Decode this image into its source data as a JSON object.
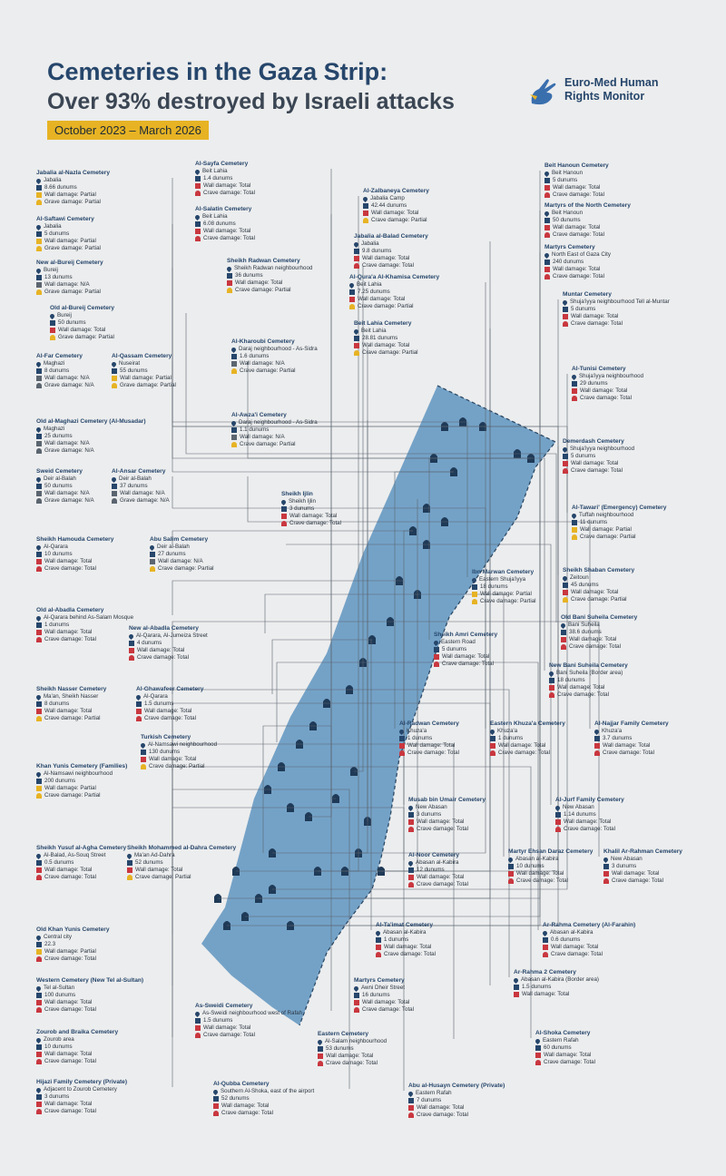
{
  "header": {
    "title": "Cemeteries in the Gaza Strip:",
    "subtitle": "Over 93% destroyed by Israeli attacks",
    "date_range": "October 2023 – March 2026",
    "logo_line1": "Euro-Med Human",
    "logo_line2": "Rights Monitor"
  },
  "colors": {
    "title": "#26466b",
    "badge": "#e7b324",
    "total": "#c9373f",
    "partial": "#e7b324",
    "na": "#5b6570",
    "map": "#5f94bf"
  },
  "cemeteries": [
    {
      "name": "Jabalia al-Nazla Cemetery",
      "location": "Jabalia",
      "area": "8.66 dunums",
      "wall": "Wall damage: Partial",
      "grave": "Grave damage: Partial"
    },
    {
      "name": "Al-Saftawi Cemetery",
      "location": "Jabalia",
      "area": "5 dunums",
      "wall": "Wall damage: Partial",
      "grave": "Grave damage: Partial"
    },
    {
      "name": "New al-Bureij Cemetery",
      "location": "Bureij",
      "area": "13 dunums",
      "wall": "Wall damage: N/A",
      "grave": "Grave damage: Partial"
    },
    {
      "name": "Old al-Bureij Cemetery",
      "location": "Bureij",
      "area": "50 dunums",
      "wall": "Wall damage: Total",
      "grave": "Grave damage: Partial"
    },
    {
      "name": "Al-Far Cemetery",
      "location": "Maghazi",
      "area": "8 dunums",
      "wall": "Wall damage: N/A",
      "grave": "Grave damage: N/A"
    },
    {
      "name": "Al-Qassam Cemetery",
      "location": "Nuseirat",
      "area": "55 dunums",
      "wall": "Wall damage: Partial",
      "grave": "Grave damage: Partial"
    },
    {
      "name": "Old al-Maghazi Cemetery (Al-Musadar)",
      "location": "Maghazi",
      "area": "25 dunums",
      "wall": "Wall damage: N/A",
      "grave": "Grave damage: N/A"
    },
    {
      "name": "Sweid Cemetery",
      "location": "Deir al-Balah",
      "area": "50 dunums",
      "wall": "Wall damage: N/A",
      "grave": "Grave damage: N/A"
    },
    {
      "name": "Al-Ansar Cemetery",
      "location": "Deir al-Balah",
      "area": "37 dunums",
      "wall": "Wall damage: N/A",
      "grave": "Grave damage: N/A"
    },
    {
      "name": "Sheikh Hamouda Cemetery",
      "location": "Al-Qarara",
      "area": "10 dunums",
      "wall": "Wall damage: Total",
      "grave": "Crave damage: Total"
    },
    {
      "name": "Abu Salim Cemetery",
      "location": "Deir al-Balah",
      "area": "27 dunums",
      "wall": "Wall damage: N/A",
      "grave": "Crave damage: Partial"
    },
    {
      "name": "Old al-Abadla Cemetery",
      "location": "Al-Qarara behind As-Salam Mosque",
      "area": "1 dunums",
      "wall": "Wall damage: Total",
      "grave": "Crave damage: Total"
    },
    {
      "name": "New al-Abadla Cemetery",
      "location": "Al-Qarara, Al-Jumeiza Street",
      "area": "4 dunums",
      "wall": "Wall damage: Total",
      "grave": "Crave damage: Total"
    },
    {
      "name": "Sheikh Nasser Cemetery",
      "location": "Ma'an, Sheikh Nasser",
      "area": "8 dunums",
      "wall": "Wall damage: Total",
      "grave": "Crave damage: Partial"
    },
    {
      "name": "Al-Ghawafeer Cemetery",
      "location": "Al-Qarara",
      "area": "1.5 dunums",
      "wall": "Wall damage: Total",
      "grave": "Crave damage: Total"
    },
    {
      "name": "Turkish Cemetery",
      "location": "Al-Namsawi neighbourhood",
      "area": "130 dunums",
      "wall": "Wall damage: Total",
      "grave": "Crave damage: Partial"
    },
    {
      "name": "Khan Yunis Cemetery (Families)",
      "location": "Al-Namsawi neighbourhood",
      "area": "200 dunums",
      "wall": "Wall damage: Partial",
      "grave": "Crave damage: Partial"
    },
    {
      "name": "Sheikh Yusuf al-Agha Cemetery",
      "location": "Al-Balad, As-Souq Street",
      "area": "0.5 dunums",
      "wall": "Wall damage: Total",
      "grave": "Crave damage: Total"
    },
    {
      "name": "Sheikh Mohammed al-Dahra Cemetery",
      "location": "Ma'an Ad-Dahra",
      "area": "52 dunums",
      "wall": "Wall damage: Total",
      "grave": "Crave damage: Partial"
    },
    {
      "name": "Old Khan Yunis Cemetery",
      "location": "Central city",
      "area": "22.3",
      "wall": "Wall damage: Partial",
      "grave": "Crave damage: Total"
    },
    {
      "name": "Western Cemetery (New Tel al-Sultan)",
      "location": "Tel al-Sultan",
      "area": "100 dunums",
      "wall": "Wall damage: Total",
      "grave": "Crave damage: Total"
    },
    {
      "name": "Zourob and Braika Cemetery",
      "location": "Zourob area",
      "area": "10 dunums",
      "wall": "Wall damage: Total",
      "grave": "Crave damage: Total"
    },
    {
      "name": "Hijazi Family Cemetery (Private)",
      "location": "Adjacent to Zourob Cemetery",
      "area": "3 dunums",
      "wall": "Wall damage: Total",
      "grave": "Crave damage: Total"
    },
    {
      "name": "Al-Sayfa Cemetery",
      "location": "Beit Lahia",
      "area": "1.4 dunums",
      "wall": "Wall damage: Total",
      "grave": "Crave damage: Total"
    },
    {
      "name": "Al-Salatin Cemetery",
      "location": "Beit Lahia",
      "area": "6.08 dunums",
      "wall": "Wall damage: Total",
      "grave": "Crave damage: Total"
    },
    {
      "name": "Sheikh Radwan Cemetery",
      "location": "Sheikh Radwan neighbourhood",
      "area": "36 dunums",
      "wall": "Wall damage: Total",
      "grave": "Crave damage: Partial"
    },
    {
      "name": "Al-Kharoubi Cemetery",
      "location": "Daraj neighbourhood - As-Sidra",
      "area": "1.6 dunums",
      "wall": "Wall damage: N/A",
      "grave": "Crave damage: Partial"
    },
    {
      "name": "Al-Awza'i Cemetery",
      "location": "Daraj neighbourhood - As-Sidra",
      "area": "1.1 dunums",
      "wall": "Wall damage: N/A",
      "grave": "Crave damage: Partial"
    },
    {
      "name": "Sheikh Ijlin",
      "location": "Sheikh Ijlin",
      "area": "3 dunums",
      "wall": "Wall damage: Total",
      "grave": "Crave damage: Total"
    },
    {
      "name": "Al-Zalbaneya Cemetery",
      "location": "Jabalia Camp",
      "area": "42.44 dunums",
      "wall": "Wall damage: Total",
      "grave": "Crave damage: Partial"
    },
    {
      "name": "Jabalia al-Balad Cemetery",
      "location": "Jabalia",
      "area": "9.8 dunums",
      "wall": "Wall damage: Total",
      "grave": "Crave damage: Total"
    },
    {
      "name": "Al-Qura'a Al-Khamisa Cemetery",
      "location": "Beit Lahia",
      "area": "7.25 dunums",
      "wall": "Wall damage: Total",
      "grave": "Crave damage: Partial"
    },
    {
      "name": "Beit Lahia Cemetery",
      "location": "Beit Lahia",
      "area": "28.81 dunums",
      "wall": "Wall damage: Total",
      "grave": "Crave damage: Partial"
    },
    {
      "name": "Beit Hanoun Cemetery",
      "location": "Beit Hanoun",
      "area": "5 dunums",
      "wall": "Wall damage: Total",
      "grave": "Crave damage: Total"
    },
    {
      "name": "Martyrs of the North Cemetery",
      "location": "Beit Hanoun",
      "area": "50 dunums",
      "wall": "Wall damage: Total",
      "grave": "Crave damage: Total"
    },
    {
      "name": "Martyrs Cemetery",
      "location": "North East of Gaza City",
      "area": "240 dunums",
      "wall": "Wall damage: Total",
      "grave": "Crave damage: Total"
    },
    {
      "name": "Muntar Cemetery",
      "location": "Shuja'iyya neighbourhood Tell al-Muntar",
      "area": "5 dunums",
      "wall": "Wall damage: Total",
      "grave": "Crave damage: Total"
    },
    {
      "name": "Al-Tunisi Cemetery",
      "location": "Shuja'iyya neighbourhood",
      "area": "29 dunums",
      "wall": "Wall damage: Total",
      "grave": "Crave damage: Total"
    },
    {
      "name": "Demerdash Cemetery",
      "location": "Shuja'iyya neighbourhood",
      "area": "5 dunums",
      "wall": "Wall damage: Total",
      "grave": "Crave damage: Total"
    },
    {
      "name": "Al-Tawari' (Emergency) Cemetery",
      "location": "Tuffah neighbourhood",
      "area": "11 dunums",
      "wall": "Wall damage: Partial",
      "grave": "Crave damage: Partial"
    },
    {
      "name": "Ibn Marwan Cemetery",
      "location": "Eastern Shuja'iyya",
      "area": "18 dunums",
      "wall": "Wall damage: Partial",
      "grave": "Crave damage: Partial"
    },
    {
      "name": "Sheikh Shaban Cemetery",
      "location": "Zeitoun",
      "area": "45 dunums",
      "wall": "Wall damage: Total",
      "grave": "Crave damage: Partial"
    },
    {
      "name": "Old Bani Suheila Cemetery",
      "location": "Bani Suheila",
      "area": "38.6 dunums",
      "wall": "Wall damage: Total",
      "grave": "Crave damage: Total"
    },
    {
      "name": "Sheikh Amri Cemetery",
      "location": "Eastern Road",
      "area": "5 dunums",
      "wall": "Wall damage: Total",
      "grave": "Crave damage: Total"
    },
    {
      "name": "New Bani Suheila Cemetery",
      "location": "Bani Suheila (Border area)",
      "area": "18 dunums",
      "wall": "Wall damage: Total",
      "grave": "Crave damage: Total"
    },
    {
      "name": "Al-Radwan Cemetery",
      "location": "Khuza'a",
      "area": "1 dunums",
      "wall": "Wall damage: Total",
      "grave": "Crave damage: Total"
    },
    {
      "name": "Eastern Khuza'a Cemetery",
      "location": "Khuza'a",
      "area": "1 dunums",
      "wall": "Wall damage: Total",
      "grave": "Crave damage: Total"
    },
    {
      "name": "Al-Najjar Family Cemetery",
      "location": "Khuza'a",
      "area": "3.7 dunums",
      "wall": "Wall damage: Total",
      "grave": "Crave damage: Total"
    },
    {
      "name": "Musab bin Umair Cemetery",
      "location": "New Abasan",
      "area": "3 dunums",
      "wall": "Wall damage: Total",
      "grave": "Crave damage: Total"
    },
    {
      "name": "Al-Jurf Family Cemetery",
      "location": "New Abasan",
      "area": "1.14 dunums",
      "wall": "Wall damage: Total",
      "grave": "Crave damage: Total"
    },
    {
      "name": "Al-Noor Cemetery",
      "location": "Abasan al-Kabira",
      "area": "12 dunums",
      "wall": "Wall damage: Total",
      "grave": "Crave damage: Total"
    },
    {
      "name": "Martyr Ehsan Daraz Cemetery",
      "location": "Abasan al-Kabira",
      "area": "10 dunums",
      "wall": "Wall damage: Total",
      "grave": "Crave damage: Total"
    },
    {
      "name": "Khalil Ar-Rahman Cemetery",
      "location": "New Abasan",
      "area": "3 dunums",
      "wall": "Wall damage: Total",
      "grave": "Crave damage: Total"
    },
    {
      "name": "Al-Ta'imat Cemetery",
      "location": "Abasan al-Kabira",
      "area": "1 dunums",
      "wall": "Wall damage: Total",
      "grave": "Crave damage: Total"
    },
    {
      "name": "Ar-Rahma Cemetery (Al-Farahin)",
      "location": "Abasan al-Kabira",
      "area": "0.6 dunums",
      "wall": "Wall damage: Total",
      "grave": "Crave damage: Total"
    },
    {
      "name": "Ar-Rahma 2 Cemetery",
      "location": "Abasan al-Kabira (Border area)",
      "area": "1.5 dunums",
      "wall": "Wall damage: Total",
      "grave": ""
    },
    {
      "name": "Martyrs Cemetery",
      "location": "Awni Dheir Street",
      "area": "16 dunums",
      "wall": "Wall damage: Total",
      "grave": "Crave damage: Total"
    },
    {
      "name": "As-Sweidi Cemetery",
      "location": "As-Sweidi neighbourhood west of Rafah",
      "area": "1.5 dunums",
      "wall": "Wall damage: Total",
      "grave": "Crave damage: Total"
    },
    {
      "name": "Eastern Cemetery",
      "location": "Al-Salam neighbourhood",
      "area": "53 dunums",
      "wall": "Wall damage: Total",
      "grave": "Crave damage: Total"
    },
    {
      "name": "Al-Shoka Cemetery",
      "location": "Eastern Rafah",
      "area": "60 dunums",
      "wall": "Wall damage: Total",
      "grave": "Crave damage: Total"
    },
    {
      "name": "Al-Qubba Cemetery",
      "location": "Southern Al-Shoka, east of the airport",
      "area": "52 dunums",
      "wall": "Wall damage: Total",
      "grave": "Crave damage: Total"
    },
    {
      "name": "Abu al-Husayn Cemetery (Private)",
      "location": "Eastern Rafah",
      "area": "7 dunums",
      "wall": "Wall damage: Total",
      "grave": "Crave damage: Total"
    }
  ]
}
